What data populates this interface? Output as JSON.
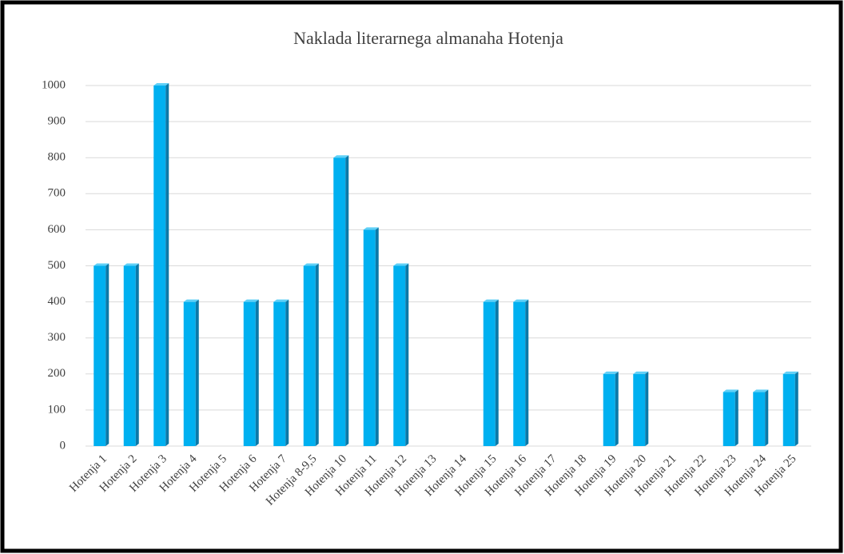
{
  "chart_data": {
    "type": "bar",
    "title": "Naklada literarnega almanaha Hotenja",
    "categories": [
      "Hotenja 1",
      "Hotenja 2",
      "Hotenja 3",
      "Hotenja 4",
      "Hotenja 5",
      "Hotenja 6",
      "Hotenja 7",
      "Hotenja 8-9,5",
      "Hotenja 10",
      "Hotenja 11",
      "Hotenja 12",
      "Hotenja 13",
      "Hotenja 14",
      "Hotenja 15",
      "Hotenja 16",
      "Hotenja 17",
      "Hotenja 18",
      "Hotenja 19",
      "Hotenja 20",
      "Hotenja 21",
      "Hotenja 22",
      "Hotenja 23",
      "Hotenja 24",
      "Hotenja 25"
    ],
    "values": [
      500,
      500,
      1000,
      400,
      0,
      400,
      400,
      500,
      800,
      600,
      500,
      0,
      0,
      400,
      400,
      0,
      0,
      200,
      200,
      0,
      0,
      150,
      150,
      200
    ],
    "color": "#00b0f0",
    "ylim": [
      0,
      1000
    ],
    "yticks": [
      0,
      100,
      200,
      300,
      400,
      500,
      600,
      700,
      800,
      900,
      1000
    ],
    "grid": true
  }
}
